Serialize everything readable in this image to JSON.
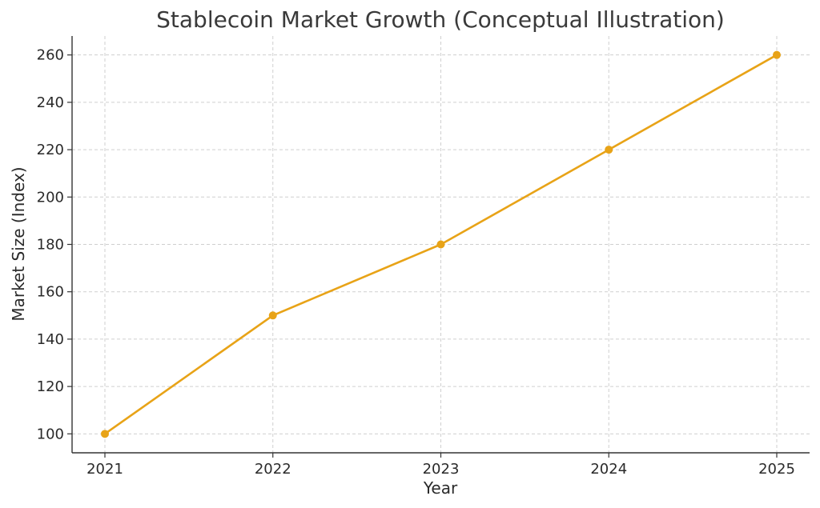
{
  "chart_data": {
    "type": "line",
    "title": "Stablecoin Market Growth (Conceptual Illustration)",
    "xlabel": "Year",
    "ylabel": "Market Size (Index)",
    "categories": [
      "2021",
      "2022",
      "2023",
      "2024",
      "2025"
    ],
    "series": [
      {
        "values": [
          100,
          150,
          180,
          220,
          260
        ]
      }
    ],
    "ylim": [
      92,
      268
    ],
    "yticks": [
      100,
      120,
      140,
      160,
      180,
      200,
      220,
      240,
      260
    ],
    "grid": true,
    "colors": {
      "line": "#E8A317",
      "marker": "#E8A317",
      "grid": "#CFCFCF",
      "axis": "#333333"
    }
  }
}
